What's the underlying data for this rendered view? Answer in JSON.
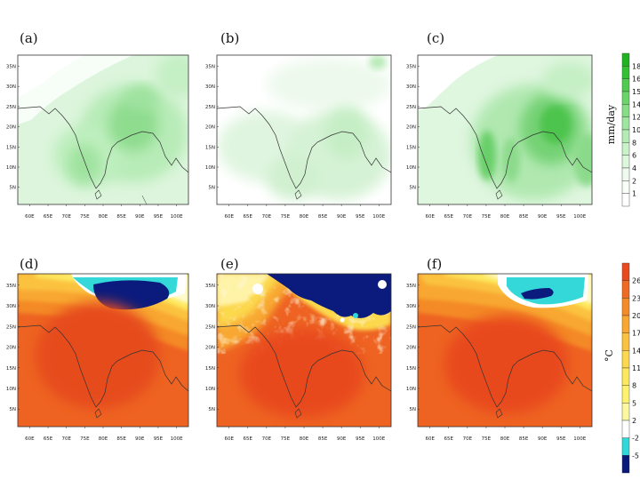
{
  "chart_data": [
    {
      "type": "heatmap",
      "panel": "(a)",
      "variable": "precipitation",
      "lat_ticks": [
        "35N",
        "30N",
        "25N",
        "20N",
        "15N",
        "10N",
        "5N"
      ],
      "lon_ticks": [
        "60E",
        "65E",
        "70E",
        "75E",
        "80E",
        "85E",
        "90E",
        "95E",
        "100E"
      ]
    },
    {
      "type": "heatmap",
      "panel": "(b)",
      "variable": "precipitation",
      "lat_ticks": [
        "35N",
        "30N",
        "25N",
        "20N",
        "15N",
        "10N",
        "5N"
      ],
      "lon_ticks": [
        "60E",
        "65E",
        "70E",
        "75E",
        "80E",
        "85E",
        "90E",
        "95E",
        "100E"
      ]
    },
    {
      "type": "heatmap",
      "panel": "(c)",
      "variable": "precipitation",
      "lat_ticks": [
        "35N",
        "30N",
        "25N",
        "20N",
        "15N",
        "10N",
        "5N"
      ],
      "lon_ticks": [
        "60E",
        "65E",
        "70E",
        "75E",
        "80E",
        "85E",
        "90E",
        "95E",
        "100E"
      ]
    },
    {
      "type": "heatmap",
      "panel": "(d)",
      "variable": "temperature",
      "lat_ticks": [
        "35N",
        "30N",
        "25N",
        "20N",
        "15N",
        "10N",
        "5N"
      ],
      "lon_ticks": [
        "60E",
        "65E",
        "70E",
        "75E",
        "80E",
        "85E",
        "90E",
        "95E",
        "100E"
      ]
    },
    {
      "type": "heatmap",
      "panel": "(e)",
      "variable": "temperature",
      "lat_ticks": [
        "35N",
        "30N",
        "25N",
        "20N",
        "15N",
        "10N",
        "5N"
      ],
      "lon_ticks": [
        "60E",
        "65E",
        "70E",
        "75E",
        "80E",
        "85E",
        "90E",
        "95E",
        "100E"
      ]
    },
    {
      "type": "heatmap",
      "panel": "(f)",
      "variable": "temperature",
      "lat_ticks": [
        "35N",
        "30N",
        "25N",
        "20N",
        "15N",
        "10N",
        "5N"
      ],
      "lon_ticks": [
        "60E",
        "65E",
        "70E",
        "75E",
        "80E",
        "85E",
        "90E",
        "95E",
        "100E"
      ]
    }
  ],
  "colorbars": {
    "precip": {
      "title": "mm/day",
      "levels": [
        "18",
        "16",
        "15",
        "14",
        "12",
        "10",
        "8",
        "6",
        "4",
        "2",
        "1"
      ],
      "colors": [
        "#1fb31f",
        "#33c133",
        "#4fcc4f",
        "#6ad66a",
        "#85de85",
        "#9ee59e",
        "#b5ecb5",
        "#c9f2c9",
        "#dcf7dc",
        "#eefbee",
        "#f9fef9",
        "#ffffff"
      ]
    },
    "temp": {
      "title": "°C",
      "levels": [
        "26",
        "23",
        "20",
        "17",
        "14",
        "11",
        "8",
        "5",
        "2",
        "-2",
        "-5"
      ],
      "colors": [
        "#e84a1e",
        "#ef6a22",
        "#f48a28",
        "#f8a832",
        "#fbc23f",
        "#fcd84e",
        "#fde95e",
        "#fdf26e",
        "#fdf8a0",
        "#ffffff",
        "#2fd9d9",
        "#0a1a7a"
      ]
    }
  }
}
